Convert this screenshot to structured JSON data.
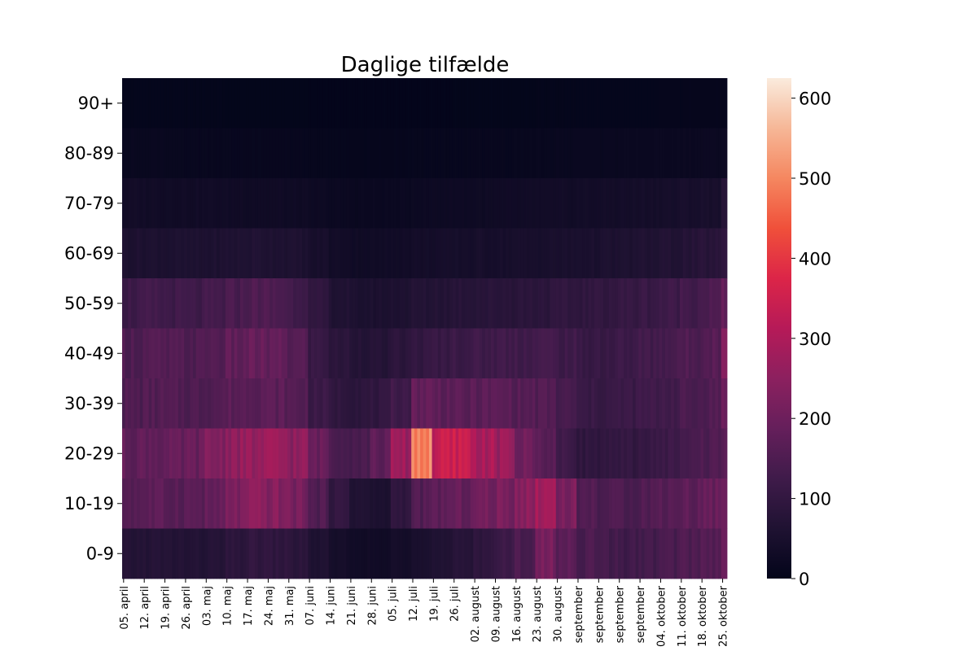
{
  "chart_data": {
    "type": "heatmap",
    "title": "Daglige tilfælde",
    "rows": [
      "90+",
      "80-89",
      "70-79",
      "60-69",
      "50-59",
      "40-49",
      "30-39",
      "20-29",
      "10-19",
      "0-9"
    ],
    "x_tick_labels": [
      "05. april",
      "12. april",
      "19. april",
      "26. april",
      "03. maj",
      "10. maj",
      "17. maj",
      "24. maj",
      "31. maj",
      "07. juni",
      "14. juni",
      "21. juni",
      "28. juni",
      "05. juli",
      "12. juli",
      "19. juli",
      "26. juli",
      "02. august",
      "09. august",
      "16. august",
      "23. august",
      "30. august",
      "september",
      "september",
      "september",
      "september",
      "04. oktober",
      "11. oktober",
      "18. oktober",
      "25. oktober"
    ],
    "colorbar": {
      "min": 0,
      "max": 625,
      "ticks": [
        0,
        100,
        200,
        300,
        400,
        500,
        600
      ]
    },
    "weekly_values": {
      "90+": [
        4,
        4,
        4,
        4,
        4,
        3,
        3,
        3,
        3,
        2,
        2,
        2,
        2,
        2,
        2,
        2,
        3,
        3,
        3,
        3,
        4,
        4,
        5,
        5,
        5,
        5,
        6,
        6,
        6,
        7
      ],
      "80-89": [
        14,
        14,
        13,
        13,
        12,
        12,
        11,
        11,
        10,
        8,
        7,
        6,
        6,
        7,
        9,
        9,
        10,
        10,
        11,
        12,
        13,
        14,
        15,
        15,
        16,
        16,
        17,
        18,
        19,
        25
      ],
      "70-79": [
        34,
        33,
        32,
        32,
        31,
        30,
        29,
        28,
        27,
        22,
        18,
        16,
        16,
        18,
        22,
        24,
        25,
        26,
        28,
        30,
        32,
        33,
        35,
        36,
        38,
        40,
        42,
        45,
        48,
        70
      ],
      "60-69": [
        58,
        58,
        57,
        57,
        58,
        62,
        64,
        62,
        58,
        45,
        35,
        30,
        30,
        34,
        38,
        40,
        42,
        44,
        45,
        46,
        48,
        50,
        52,
        55,
        58,
        62,
        66,
        72,
        78,
        100
      ],
      "50-59": [
        120,
        125,
        122,
        120,
        128,
        140,
        150,
        145,
        130,
        90,
        65,
        55,
        55,
        60,
        68,
        72,
        78,
        80,
        82,
        85,
        88,
        92,
        95,
        100,
        105,
        112,
        120,
        132,
        145,
        175
      ],
      "40-49": [
        150,
        155,
        152,
        150,
        160,
        175,
        185,
        178,
        160,
        110,
        85,
        75,
        72,
        85,
        100,
        110,
        118,
        122,
        126,
        128,
        130,
        122,
        110,
        112,
        118,
        128,
        138,
        150,
        165,
        225
      ],
      "30-39": [
        150,
        155,
        152,
        150,
        158,
        168,
        175,
        170,
        158,
        115,
        95,
        90,
        95,
        125,
        185,
        175,
        165,
        170,
        168,
        160,
        155,
        135,
        110,
        110,
        115,
        122,
        130,
        140,
        155,
        195
      ],
      "20-29": [
        180,
        185,
        182,
        190,
        230,
        255,
        260,
        265,
        250,
        190,
        150,
        145,
        175,
        270,
        500,
        330,
        340,
        290,
        265,
        200,
        170,
        120,
        95,
        95,
        100,
        108,
        120,
        135,
        150,
        180
      ],
      "10-19": [
        165,
        170,
        168,
        170,
        180,
        220,
        240,
        235,
        215,
        150,
        100,
        65,
        55,
        95,
        155,
        175,
        185,
        205,
        215,
        245,
        285,
        220,
        155,
        145,
        148,
        155,
        165,
        175,
        188,
        205
      ],
      "0-9": [
        70,
        72,
        70,
        68,
        72,
        85,
        95,
        92,
        85,
        60,
        40,
        32,
        30,
        40,
        55,
        62,
        75,
        95,
        115,
        145,
        210,
        170,
        145,
        130,
        125,
        130,
        140,
        150,
        160,
        185
      ]
    }
  }
}
